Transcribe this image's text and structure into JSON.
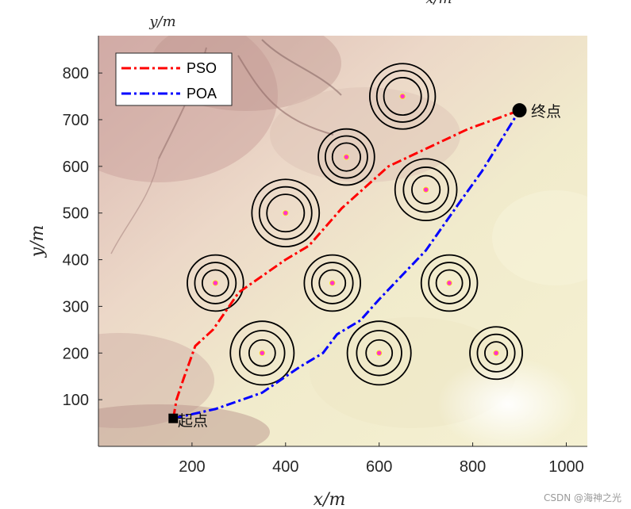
{
  "chart_data": {
    "type": "line",
    "title": "",
    "top_label": "y/m",
    "top_label_right": "x/m",
    "xlabel": "x/m",
    "ylabel": "y/m",
    "xlim": [
      0,
      1045
    ],
    "ylim": [
      0,
      880
    ],
    "xticks": [
      200,
      400,
      600,
      800,
      1000
    ],
    "yticks": [
      100,
      200,
      300,
      400,
      500,
      600,
      700,
      800
    ],
    "background": "terrain elevation map",
    "series": [
      {
        "name": "PSO",
        "color": "#ff0000",
        "style": "dash-dot",
        "points": [
          [
            160,
            60
          ],
          [
            167,
            100
          ],
          [
            182,
            145
          ],
          [
            207,
            215
          ],
          [
            245,
            250
          ],
          [
            300,
            330
          ],
          [
            400,
            400
          ],
          [
            450,
            430
          ],
          [
            520,
            510
          ],
          [
            620,
            600
          ],
          [
            790,
            680
          ],
          [
            900,
            720
          ]
        ]
      },
      {
        "name": "POA",
        "color": "#0000ff",
        "style": "dash-dot",
        "points": [
          [
            160,
            60
          ],
          [
            250,
            80
          ],
          [
            350,
            115
          ],
          [
            430,
            170
          ],
          [
            480,
            200
          ],
          [
            510,
            240
          ],
          [
            560,
            270
          ],
          [
            600,
            315
          ],
          [
            700,
            420
          ],
          [
            770,
            520
          ],
          [
            820,
            590
          ],
          [
            900,
            720
          ]
        ]
      }
    ],
    "obstacles": [
      {
        "x": 650,
        "y": 750,
        "radii": [
          40,
          55,
          70
        ]
      },
      {
        "x": 530,
        "y": 620,
        "radii": [
          30,
          45,
          60
        ]
      },
      {
        "x": 700,
        "y": 550,
        "radii": [
          30,
          48,
          66
        ]
      },
      {
        "x": 400,
        "y": 500,
        "radii": [
          40,
          56,
          72
        ]
      },
      {
        "x": 250,
        "y": 350,
        "radii": [
          28,
          44,
          60
        ]
      },
      {
        "x": 500,
        "y": 350,
        "radii": [
          28,
          44,
          60
        ]
      },
      {
        "x": 750,
        "y": 350,
        "radii": [
          28,
          44,
          60
        ]
      },
      {
        "x": 350,
        "y": 200,
        "radii": [
          28,
          48,
          68
        ]
      },
      {
        "x": 600,
        "y": 200,
        "radii": [
          28,
          48,
          68
        ]
      },
      {
        "x": 850,
        "y": 200,
        "radii": [
          24,
          40,
          56
        ]
      }
    ],
    "start": {
      "x": 160,
      "y": 60,
      "label": "起点"
    },
    "end": {
      "x": 900,
      "y": 720,
      "label": "终点"
    },
    "legend": {
      "location": "top-left",
      "entries": [
        "PSO",
        "POA"
      ]
    }
  },
  "watermark": "CSDN @海神之光"
}
